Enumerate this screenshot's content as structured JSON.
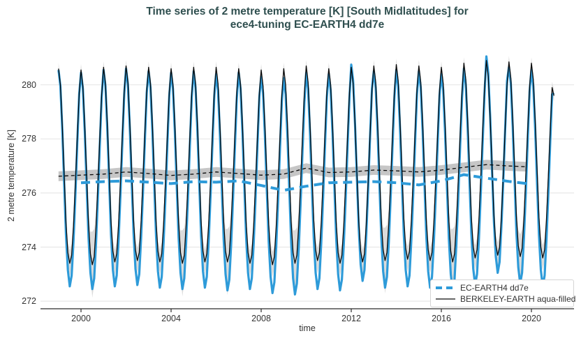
{
  "title": {
    "line1": "Time series of 2 metre temperature [K] [South Midlatitudes] for",
    "line2": "ece4-tuning EC-EARTH4 dd7e"
  },
  "axes": {
    "x": {
      "label": "time",
      "ticks": [
        2000,
        2004,
        2008,
        2012,
        2016,
        2020
      ],
      "range": [
        1998.2,
        2021.89
      ]
    },
    "y": {
      "label": "2 metre temperature [K]",
      "ticks": [
        272,
        274,
        276,
        278,
        280
      ],
      "range": [
        271.72,
        281.54
      ]
    }
  },
  "legend": {
    "items": [
      {
        "label": "EC-EARTH4 dd7e"
      },
      {
        "label": "BERKELEY-EARTH aqua-filled"
      }
    ]
  },
  "colors": {
    "series_blue": "#2E9BD9",
    "series_black": "#0a0a0a",
    "seasonal_band": "#dbdbdb",
    "mean_band": "#c6c6c6",
    "grid": "#e7e7e7",
    "axis_line": "#2a2a2a",
    "text": "#333333",
    "title": "#2f4f4f"
  },
  "chart_data": {
    "type": "line",
    "title": "Time series of 2 metre temperature [K] [South Midlatitudes] for ece4-tuning EC-EARTH4 dd7e",
    "xlabel": "time",
    "ylabel": "2 metre temperature [K]",
    "x_range": [
      1998.2,
      2021.89
    ],
    "y_range": [
      271.72,
      281.54
    ],
    "grid": "horizontal-only",
    "legend_position": "bottom-right",
    "series": [
      {
        "name": "EC-EARTH4 dd7e",
        "kind": "monthly seasonal cycle",
        "start_year": 1999,
        "base": 276.35,
        "monthly_climatology": [
          4.1,
          3.5,
          1.9,
          -0.1,
          -2.0,
          -3.3,
          -3.9,
          -3.5,
          -2.2,
          -0.5,
          1.4,
          3.2
        ],
        "annual_anomaly": [
          0.1,
          0.0,
          0.1,
          0.15,
          0.05,
          0.0,
          0.05,
          -0.05,
          0.0,
          -0.15,
          -0.2,
          0.0,
          -0.05,
          0.3,
          0.05,
          0.1,
          0.05,
          -0.05,
          0.15,
          0.6,
          0.2,
          0.1
        ],
        "end_point": [
          2021.0,
          279.7
        ]
      },
      {
        "name": "BERKELEY-EARTH aqua-filled",
        "kind": "monthly seasonal cycle with uncertainty band",
        "start_year": 1999,
        "base": 276.7,
        "monthly_climatology": [
          3.9,
          3.3,
          1.8,
          0.0,
          -1.8,
          -2.9,
          -3.3,
          -3.0,
          -1.9,
          -0.3,
          1.4,
          3.0
        ],
        "annual_anomaly": [
          0.0,
          -0.05,
          0.05,
          0.1,
          0.05,
          0.0,
          0.05,
          0.05,
          0.0,
          -0.05,
          0.0,
          0.1,
          0.0,
          0.05,
          0.1,
          0.15,
          0.1,
          0.05,
          0.2,
          0.3,
          0.25,
          0.2
        ],
        "end_point": [
          2021.0,
          279.6
        ]
      }
    ],
    "seasonal_band": {
      "base_halfwidth": 0.22,
      "winter_shape": [
        0,
        0,
        0,
        0.05,
        0.2,
        0.6,
        1.0,
        0.8,
        0.3,
        0.05,
        0,
        0
      ],
      "extra_by_year": [
        0.25,
        1.0,
        0.25,
        0.25,
        0.25,
        1.0,
        0.25,
        1.0,
        0.25,
        0.25,
        1.0,
        0.25,
        0.25,
        0.25,
        1.0,
        0.25,
        0.25,
        1.0,
        0.25,
        0.25,
        0.6,
        0.25
      ]
    },
    "running_means": [
      {
        "name": "EC-EARTH4 dd7e running mean",
        "style": "thick blue dashed",
        "points": [
          [
            2000,
            276.38
          ],
          [
            2001,
            276.42
          ],
          [
            2002,
            276.45
          ],
          [
            2003,
            276.4
          ],
          [
            2004,
            276.35
          ],
          [
            2005,
            276.42
          ],
          [
            2006,
            276.4
          ],
          [
            2007,
            276.45
          ],
          [
            2008,
            276.28
          ],
          [
            2009,
            276.1
          ],
          [
            2010,
            276.25
          ],
          [
            2011,
            276.38
          ],
          [
            2012,
            276.4
          ],
          [
            2013,
            276.42
          ],
          [
            2014,
            276.38
          ],
          [
            2015,
            276.3
          ],
          [
            2016,
            276.45
          ],
          [
            2017,
            276.68
          ],
          [
            2018,
            276.55
          ],
          [
            2019,
            276.43
          ],
          [
            2019.8,
            276.35
          ]
        ]
      },
      {
        "name": "BERKELEY-EARTH running mean",
        "style": "thin black dashed with gray band",
        "band_halfwidth": 0.18,
        "points": [
          [
            1999,
            276.62
          ],
          [
            2000,
            276.66
          ],
          [
            2001,
            276.7
          ],
          [
            2002,
            276.78
          ],
          [
            2003,
            276.72
          ],
          [
            2004,
            276.65
          ],
          [
            2005,
            276.7
          ],
          [
            2006,
            276.78
          ],
          [
            2007,
            276.72
          ],
          [
            2008,
            276.66
          ],
          [
            2009,
            276.7
          ],
          [
            2010,
            276.92
          ],
          [
            2011,
            276.76
          ],
          [
            2012,
            276.78
          ],
          [
            2013,
            276.85
          ],
          [
            2014,
            276.82
          ],
          [
            2015,
            276.78
          ],
          [
            2016,
            276.85
          ],
          [
            2017,
            276.95
          ],
          [
            2018,
            277.05
          ],
          [
            2019,
            277.0
          ],
          [
            2019.8,
            276.97
          ]
        ]
      }
    ]
  }
}
